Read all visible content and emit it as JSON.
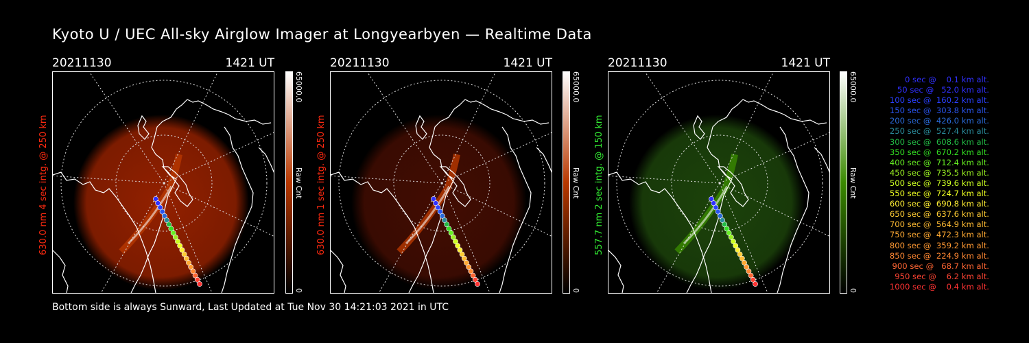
{
  "title": "Kyoto U / UEC All-sky Airglow Imager at Longyearbyen — Realtime Data",
  "footer": "Bottom side is always Sunward, Last Updated at Tue Nov 30 14:21:03 2021 in UTC",
  "panels": [
    {
      "date": "20211130",
      "time": "1421 UT",
      "ylabel": "630.0 nm 4 sec intg. @ 250 km",
      "label_color": "#ff2a10",
      "scale_max": "65000.0",
      "scale_min": "0",
      "scale_unit": "Raw Cnt",
      "color_low": "#000000",
      "color_mid": "#b83800",
      "color_high": "#ffffff",
      "glow_color": "#9a2200",
      "glow_opacity": 0.95
    },
    {
      "date": "20211130",
      "time": "1421 UT",
      "ylabel": "630.0 nm 1 sec intg. @ 250 km",
      "label_color": "#ff2a10",
      "scale_max": "65000.0",
      "scale_min": "0",
      "scale_unit": "Raw Cnt",
      "color_low": "#000000",
      "color_mid": "#b83800",
      "color_high": "#ffffff",
      "glow_color": "#4a0e02",
      "glow_opacity": 0.9
    },
    {
      "date": "20211130",
      "time": "1421 UT",
      "ylabel": "557.7 nm 2 sec intg. @ 150 km",
      "label_color": "#33ee33",
      "scale_max": "65000.0",
      "scale_min": "0",
      "scale_unit": "Raw Cnt",
      "color_low": "#000000",
      "color_mid": "#3a8a00",
      "color_high": "#ffffff",
      "glow_color": "#1f4a0c",
      "glow_opacity": 0.9
    }
  ],
  "legend": [
    {
      "text": "0 sec @    0.1 km alt.",
      "color": "#3030ff"
    },
    {
      "text": "50 sec @   52.0 km alt.",
      "color": "#3030ff"
    },
    {
      "text": "100 sec @  160.2 km alt.",
      "color": "#2a40ff"
    },
    {
      "text": "150 sec @  303.8 km alt.",
      "color": "#2a55ee"
    },
    {
      "text": "200 sec @  426.0 km alt.",
      "color": "#2a6ad8"
    },
    {
      "text": "250 sec @  527.4 km alt.",
      "color": "#2a8a9a"
    },
    {
      "text": "300 sec @  608.6 km alt.",
      "color": "#22bb44"
    },
    {
      "text": "350 sec @  670.2 km alt.",
      "color": "#33dd22"
    },
    {
      "text": "400 sec @  712.4 km alt.",
      "color": "#66ee22"
    },
    {
      "text": "450 sec @  735.5 km alt.",
      "color": "#99ee22"
    },
    {
      "text": "500 sec @  739.6 km alt.",
      "color": "#ccff22"
    },
    {
      "text": "550 sec @  724.7 km alt.",
      "color": "#eeff22"
    },
    {
      "text": "600 sec @  690.8 km alt.",
      "color": "#ffee33"
    },
    {
      "text": "650 sec @  637.6 km alt.",
      "color": "#ffcc33"
    },
    {
      "text": "700 sec @  564.9 km alt.",
      "color": "#ffbb33"
    },
    {
      "text": "750 sec @  472.3 km alt.",
      "color": "#ffaa33"
    },
    {
      "text": "800 sec @  359.2 km alt.",
      "color": "#ff9933"
    },
    {
      "text": "850 sec @  224.9 km alt.",
      "color": "#ff8833"
    },
    {
      "text": "900 sec @   68.7 km alt.",
      "color": "#ff6633"
    },
    {
      "text": "950 sec @    6.2 km alt.",
      "color": "#ff4433"
    },
    {
      "text": "1000 sec @    0.4 km alt.",
      "color": "#ff3333"
    }
  ]
}
